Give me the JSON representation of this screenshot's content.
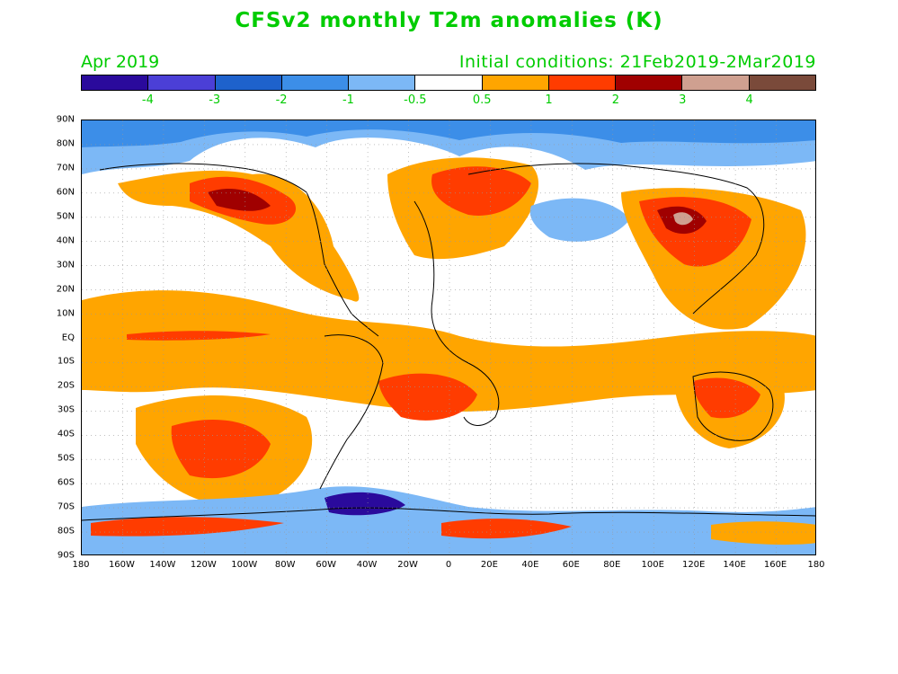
{
  "title": "CFSv2 monthly T2m anomalies (K)",
  "valid_month": "Apr 2019",
  "initial_conditions": "Initial conditions: 21Feb2019-2Mar2019",
  "colorbar": {
    "colors": [
      "#2a0a9c",
      "#4b3fd6",
      "#1e62cc",
      "#3c8ee8",
      "#7cb8f6",
      "#ffffff",
      "#ffa500",
      "#ff3c00",
      "#a00000",
      "#cfa090",
      "#7a4a3a"
    ],
    "tick_labels": [
      "-4",
      "-3",
      "-2",
      "-1",
      "-0.5",
      "0.5",
      "1",
      "2",
      "3",
      "4"
    ]
  },
  "map": {
    "lat_labels": [
      "90N",
      "80N",
      "70N",
      "60N",
      "50N",
      "40N",
      "30N",
      "20N",
      "10N",
      "EQ",
      "10S",
      "20S",
      "30S",
      "40S",
      "50S",
      "60S",
      "70S",
      "80S",
      "90S"
    ],
    "lon_labels": [
      "180",
      "160W",
      "140W",
      "120W",
      "100W",
      "80W",
      "60W",
      "40W",
      "20W",
      "0",
      "20E",
      "40E",
      "60E",
      "80E",
      "100E",
      "120E",
      "140E",
      "160E",
      "180"
    ],
    "grid": true
  }
}
